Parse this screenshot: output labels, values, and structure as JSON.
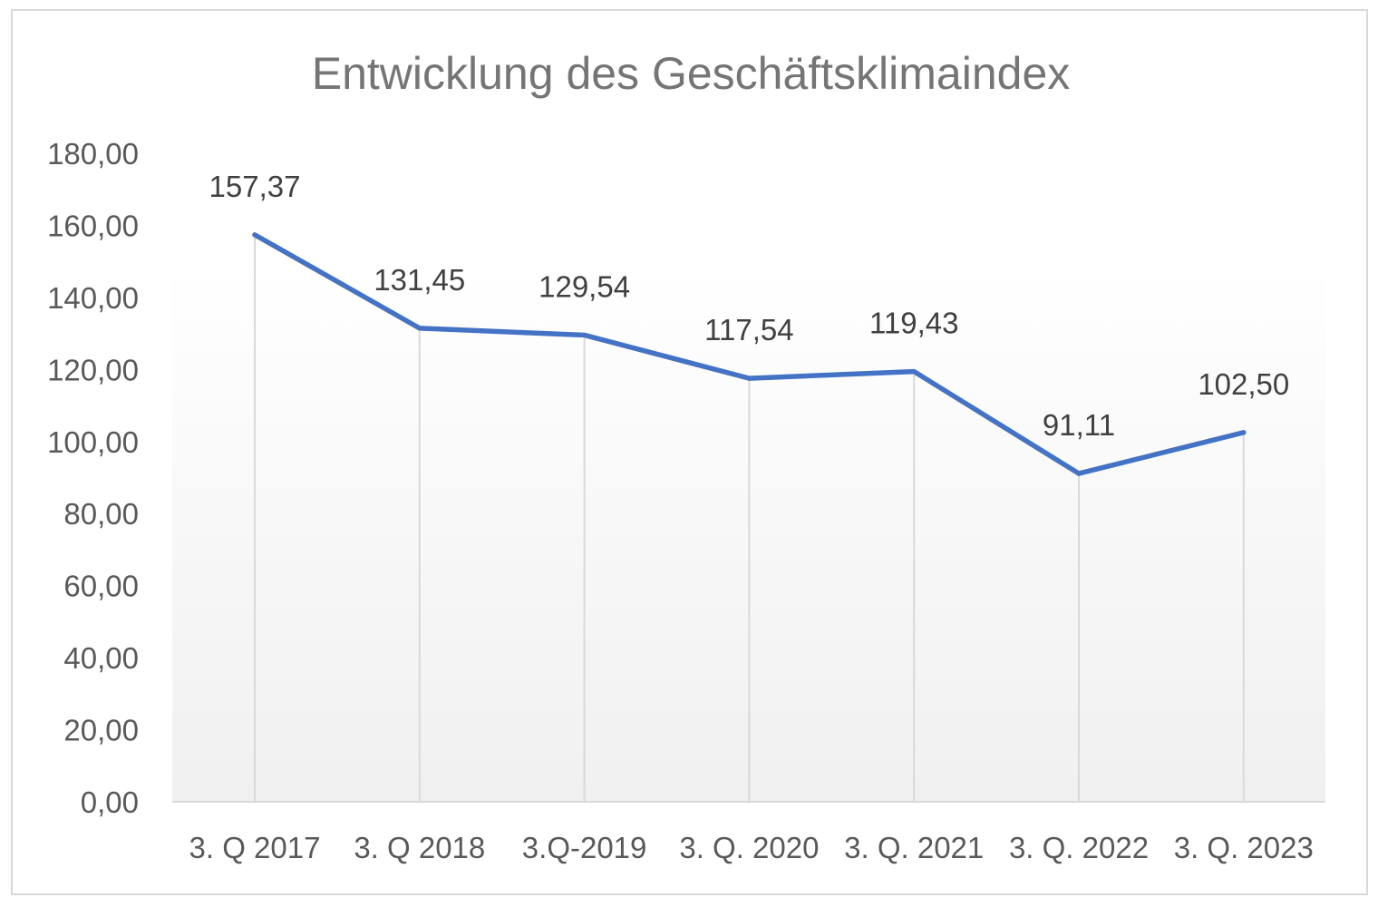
{
  "chart_data": {
    "type": "line",
    "title": "Entwicklung des Geschäftsklimaindex",
    "xlabel": "",
    "ylabel": "",
    "categories": [
      "3. Q 2017",
      "3. Q 2018",
      "3.Q-2019",
      "3. Q. 2020",
      "3. Q. 2021",
      "3. Q. 2022",
      "3. Q. 2023"
    ],
    "series": [
      {
        "name": "Geschäftsklimaindex",
        "values": [
          157.37,
          131.45,
          129.54,
          117.54,
          119.43,
          91.11,
          102.5
        ],
        "labels": [
          "157,37",
          "131,45",
          "129,54",
          "117,54",
          "119,43",
          "91,11",
          "102,50"
        ]
      }
    ],
    "ylim": [
      0,
      180
    ],
    "yticks": [
      0,
      20,
      40,
      60,
      80,
      100,
      120,
      140,
      160,
      180
    ],
    "ytick_labels": [
      "0,00",
      "20,00",
      "40,00",
      "60,00",
      "80,00",
      "100,00",
      "120,00",
      "140,00",
      "160,00",
      "180,00"
    ],
    "grid": false,
    "drop_lines": true,
    "legend": "none",
    "colors": {
      "line": "#4472C4",
      "drop": "#d9d9d9",
      "axis": "#d9d9d9"
    }
  }
}
